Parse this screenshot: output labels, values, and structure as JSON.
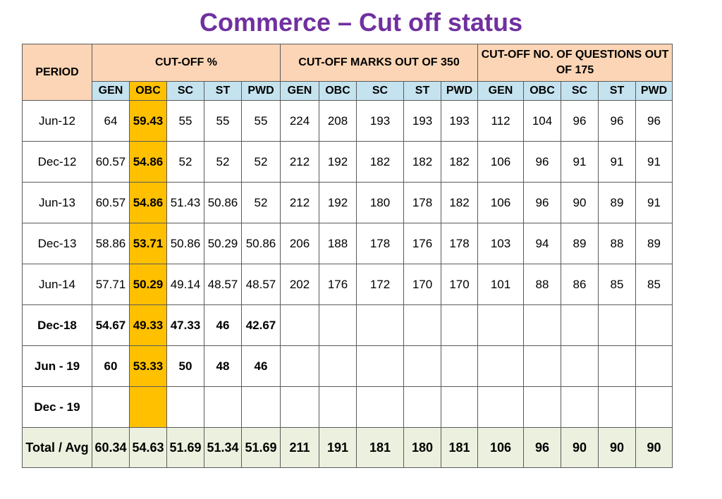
{
  "title": "Commerce – Cut off status",
  "headers": {
    "period": "PERIOD",
    "group1": "CUT-OFF %",
    "group2": "CUT-OFF MARKS OUT OF 350",
    "group3": "CUT-OFF NO. OF QUESTIONS OUT OF 175",
    "categories": [
      "GEN",
      "OBC",
      "SC",
      "ST",
      "PWD"
    ]
  },
  "rows": [
    {
      "period": "Jun-12",
      "bold": false,
      "pct": [
        "64",
        "59.43",
        "55",
        "55",
        "55"
      ],
      "marks": [
        "224",
        "208",
        "193",
        "193",
        "193"
      ],
      "questions": [
        "112",
        "104",
        "96",
        "96",
        "96"
      ]
    },
    {
      "period": "Dec-12",
      "bold": false,
      "pct": [
        "60.57",
        "54.86",
        "52",
        "52",
        "52"
      ],
      "marks": [
        "212",
        "192",
        "182",
        "182",
        "182"
      ],
      "questions": [
        "106",
        "96",
        "91",
        "91",
        "91"
      ]
    },
    {
      "period": "Jun-13",
      "bold": false,
      "pct": [
        "60.57",
        "54.86",
        "51.43",
        "50.86",
        "52"
      ],
      "marks": [
        "212",
        "192",
        "180",
        "178",
        "182"
      ],
      "questions": [
        "106",
        "96",
        "90",
        "89",
        "91"
      ]
    },
    {
      "period": "Dec-13",
      "bold": false,
      "pct": [
        "58.86",
        "53.71",
        "50.86",
        "50.29",
        "50.86"
      ],
      "marks": [
        "206",
        "188",
        "178",
        "176",
        "178"
      ],
      "questions": [
        "103",
        "94",
        "89",
        "88",
        "89"
      ]
    },
    {
      "period": "Jun-14",
      "bold": false,
      "pct": [
        "57.71",
        "50.29",
        "49.14",
        "48.57",
        "48.57"
      ],
      "marks": [
        "202",
        "176",
        "172",
        "170",
        "170"
      ],
      "questions": [
        "101",
        "88",
        "86",
        "85",
        "85"
      ]
    },
    {
      "period": "Dec-18",
      "bold": true,
      "pct": [
        "54.67",
        "49.33",
        "47.33",
        "46",
        "42.67"
      ],
      "marks": [
        "",
        "",
        "",
        "",
        ""
      ],
      "questions": [
        "",
        "",
        "",
        "",
        ""
      ]
    },
    {
      "period": "Jun - 19",
      "bold": true,
      "pct": [
        "60",
        "53.33",
        "50",
        "48",
        "46"
      ],
      "marks": [
        "",
        "",
        "",
        "",
        ""
      ],
      "questions": [
        "",
        "",
        "",
        "",
        ""
      ]
    },
    {
      "period": "Dec - 19",
      "bold": true,
      "pct": [
        "",
        "",
        "",
        "",
        ""
      ],
      "marks": [
        "",
        "",
        "",
        "",
        ""
      ],
      "questions": [
        "",
        "",
        "",
        "",
        ""
      ]
    }
  ],
  "total": {
    "label": "Total / Avg",
    "pct": [
      "60.34",
      "54.63",
      "51.69",
      "51.34",
      "51.69"
    ],
    "marks": [
      "211",
      "191",
      "181",
      "180",
      "181"
    ],
    "questions": [
      "106",
      "96",
      "90",
      "90",
      "90"
    ]
  },
  "colors": {
    "title": "#7030a0",
    "obc_highlight": "#ffc000",
    "header_peach": "#fbd5b5",
    "header_blue": "#c5e3ef",
    "total_green": "#ebf1de"
  }
}
